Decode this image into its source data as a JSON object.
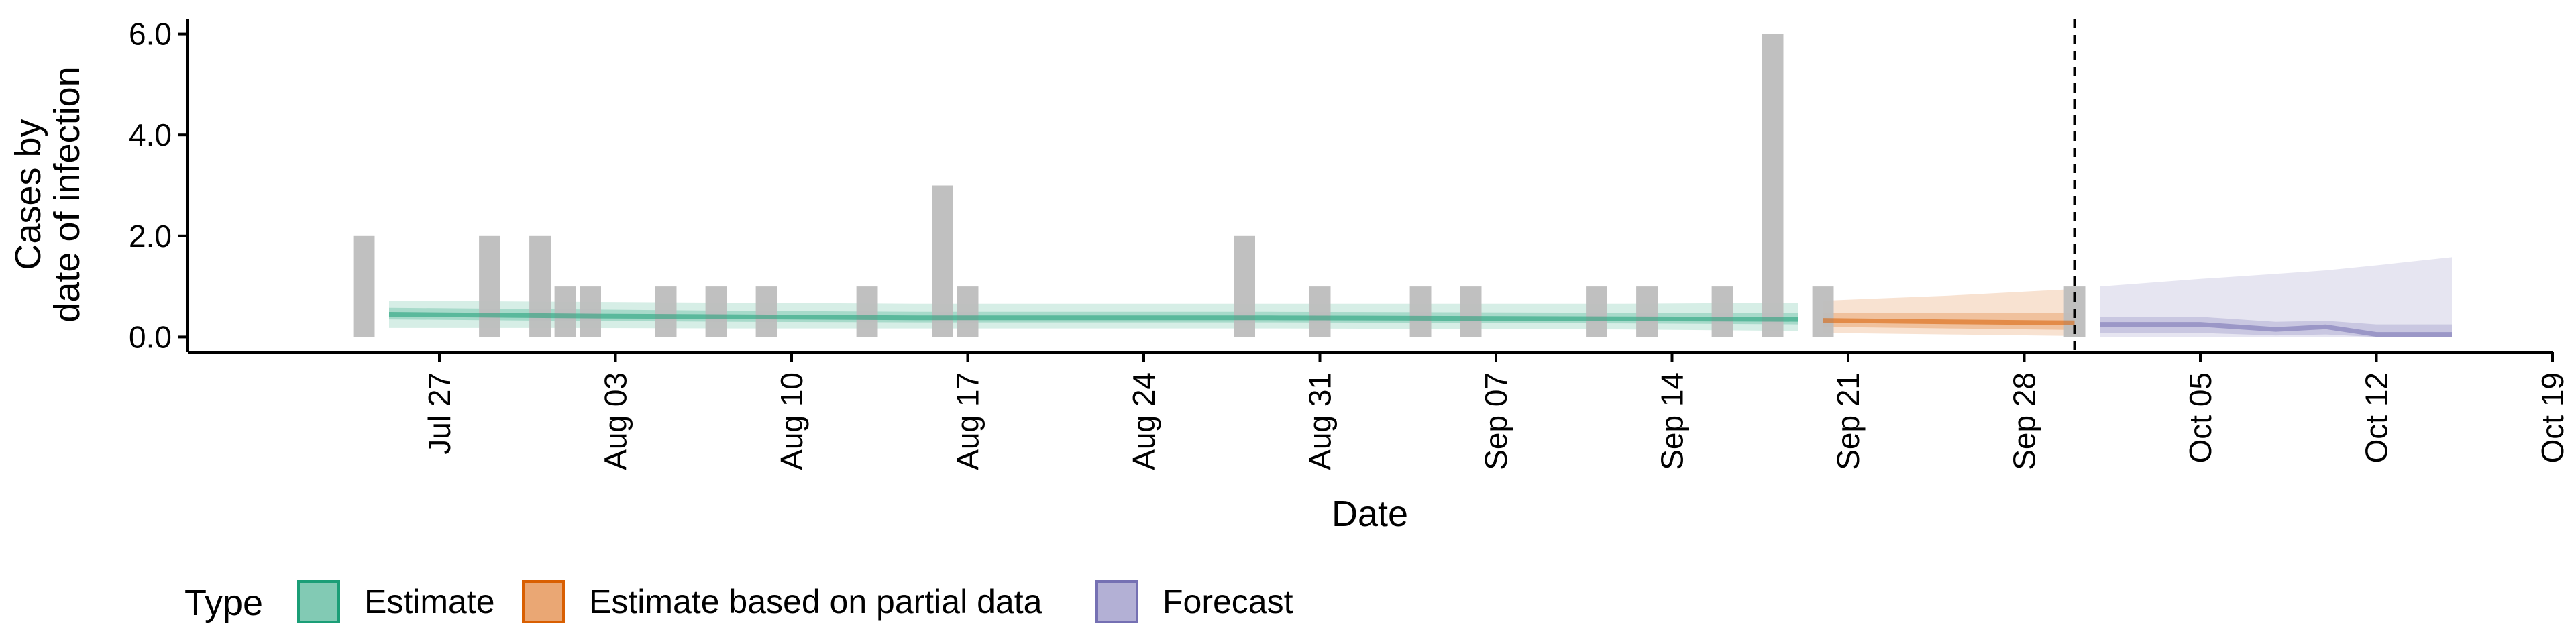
{
  "chart_data": {
    "type": "bar",
    "xlabel": "Date",
    "ylabel": "Cases by\ndate of infection",
    "ylim": [
      -0.3,
      6.3
    ],
    "yticks": [
      0,
      2,
      4,
      6
    ],
    "ytick_labels": [
      "0.0",
      "2.0",
      "4.0",
      "6.0"
    ],
    "xlim": [
      "2025-07-17",
      "2025-10-19"
    ],
    "xticks": [
      "2025-07-27",
      "2025-08-03",
      "2025-08-10",
      "2025-08-17",
      "2025-08-24",
      "2025-08-31",
      "2025-09-07",
      "2025-09-14",
      "2025-09-21",
      "2025-09-28",
      "2025-10-05",
      "2025-10-12",
      "2025-10-19"
    ],
    "xtick_labels": [
      "Jul 27",
      "Aug 03",
      "Aug 10",
      "Aug 17",
      "Aug 24",
      "Aug 31",
      "Sep 07",
      "Sep 14",
      "Sep 21",
      "Sep 28",
      "Oct 05",
      "Oct 12",
      "Oct 19"
    ],
    "observed_cases": {
      "color": "#bdbdbd",
      "x": [
        "2025-07-24",
        "2025-07-29",
        "2025-07-31",
        "2025-08-01",
        "2025-08-02",
        "2025-08-05",
        "2025-08-07",
        "2025-08-09",
        "2025-08-13",
        "2025-08-16",
        "2025-08-17",
        "2025-08-28",
        "2025-08-31",
        "2025-09-04",
        "2025-09-06",
        "2025-09-11",
        "2025-09-13",
        "2025-09-16",
        "2025-09-18",
        "2025-09-20",
        "2025-09-30"
      ],
      "values": [
        2,
        2,
        2,
        1,
        1,
        1,
        1,
        1,
        1,
        3,
        1,
        2,
        1,
        1,
        1,
        1,
        1,
        1,
        6,
        1,
        1
      ]
    },
    "forecast_date": "2025-09-30",
    "series": [
      {
        "name": "Estimate",
        "color": "#1b9e77",
        "x": [
          "2025-07-25",
          "2025-08-01",
          "2025-08-08",
          "2025-08-15",
          "2025-08-22",
          "2025-08-29",
          "2025-09-05",
          "2025-09-12",
          "2025-09-19"
        ],
        "median": [
          0.45,
          0.42,
          0.4,
          0.38,
          0.38,
          0.38,
          0.37,
          0.36,
          0.35
        ],
        "lower_90": [
          0.18,
          0.18,
          0.17,
          0.17,
          0.17,
          0.17,
          0.16,
          0.15,
          0.12
        ],
        "upper_90": [
          0.72,
          0.7,
          0.68,
          0.66,
          0.66,
          0.66,
          0.66,
          0.66,
          0.68
        ],
        "lower_50": [
          0.35,
          0.32,
          0.3,
          0.29,
          0.29,
          0.29,
          0.28,
          0.27,
          0.25
        ],
        "upper_50": [
          0.58,
          0.55,
          0.52,
          0.5,
          0.5,
          0.5,
          0.49,
          0.48,
          0.48
        ]
      },
      {
        "name": "Estimate based on partial data",
        "color": "#d95f02",
        "x": [
          "2025-09-20",
          "2025-09-25",
          "2025-09-30"
        ],
        "median": [
          0.33,
          0.3,
          0.28
        ],
        "lower_90": [
          0.08,
          0.05,
          0.02
        ],
        "upper_90": [
          0.72,
          0.82,
          0.95
        ],
        "lower_50": [
          0.2,
          0.17,
          0.14
        ],
        "upper_50": [
          0.48,
          0.47,
          0.47
        ]
      },
      {
        "name": "Forecast",
        "color": "#7570b3",
        "x": [
          "2025-10-01",
          "2025-10-05",
          "2025-10-08",
          "2025-10-10",
          "2025-10-12",
          "2025-10-15"
        ],
        "median": [
          0.25,
          0.25,
          0.15,
          0.2,
          0.05,
          0.05
        ],
        "lower_90": [
          0.0,
          0.0,
          0.0,
          0.0,
          0.0,
          0.0
        ],
        "upper_90": [
          1.0,
          1.15,
          1.25,
          1.32,
          1.42,
          1.58
        ],
        "lower_50": [
          0.08,
          0.08,
          0.03,
          0.05,
          0.0,
          0.0
        ],
        "upper_50": [
          0.4,
          0.4,
          0.3,
          0.32,
          0.25,
          0.25
        ]
      }
    ],
    "legend": {
      "title": "Type",
      "position": "bottom",
      "items": [
        {
          "label": "Estimate",
          "color": "#1b9e77"
        },
        {
          "label": "Estimate based on partial data",
          "color": "#d95f02"
        },
        {
          "label": "Forecast",
          "color": "#7570b3"
        }
      ]
    },
    "grid": false
  }
}
